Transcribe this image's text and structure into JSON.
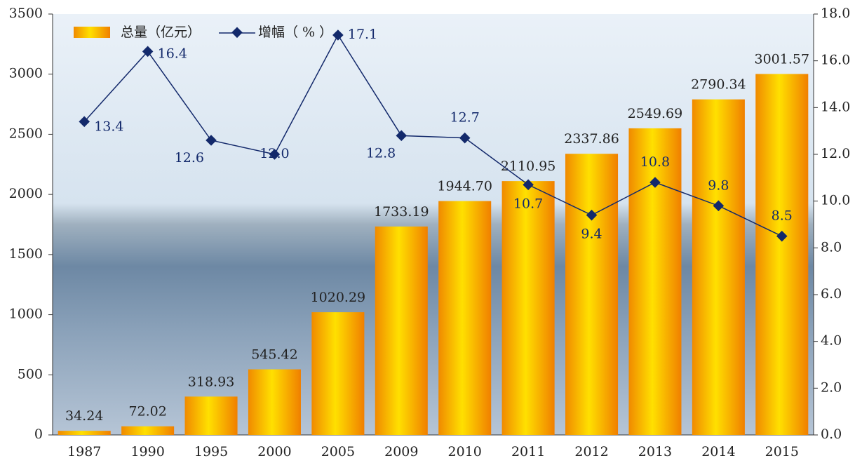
{
  "chart_data": {
    "type": "bar",
    "categories": [
      "1987",
      "1990",
      "1995",
      "2000",
      "2005",
      "2009",
      "2010",
      "2011",
      "2012",
      "2013",
      "2014",
      "2015"
    ],
    "series": [
      {
        "name": "总量（亿元）",
        "type": "bar",
        "color": "#f5a300",
        "values": [
          34.24,
          72.02,
          318.93,
          545.42,
          1020.29,
          1733.19,
          1944.7,
          2110.95,
          2337.86,
          2549.69,
          2790.34,
          3001.57
        ],
        "value_labels": [
          "34.24",
          "72.02",
          "318.93",
          "545.42",
          "1020.29",
          "1733.19",
          "1944.70",
          "2110.95",
          "2337.86",
          "2549.69",
          "2790.34",
          "3001.57"
        ]
      },
      {
        "name": "增幅（ % ）",
        "type": "line",
        "axis": "y2",
        "color": "#13296b",
        "values": [
          13.4,
          16.4,
          12.6,
          12.0,
          17.1,
          12.8,
          12.7,
          10.7,
          9.4,
          10.8,
          9.8,
          8.5
        ],
        "value_labels": [
          "13.4",
          "16.4",
          "12.6",
          "12.0",
          "17.1",
          "12.8",
          "12.7",
          "10.7",
          "9.4",
          "10.8",
          "9.8",
          "8.5"
        ]
      }
    ],
    "ylim": [
      0,
      3500
    ],
    "yticks": [
      0,
      500,
      1000,
      1500,
      2000,
      2500,
      3000,
      3500
    ],
    "y2lim": [
      0,
      18
    ],
    "y2ticks": [
      {
        "value": 0,
        "label": "0.0"
      },
      {
        "value": 2,
        "label": "2.0"
      },
      {
        "value": 4,
        "label": "4.0"
      },
      {
        "value": 6,
        "label": "6.0"
      },
      {
        "value": 8,
        "label": "8.0"
      },
      {
        "value": 10,
        "label": "10.0"
      },
      {
        "value": 12,
        "label": "12.0"
      },
      {
        "value": 14,
        "label": "14.0"
      },
      {
        "value": 16,
        "label": "16.0"
      },
      {
        "value": 18,
        "label": "18.0"
      }
    ],
    "legend": "top-left"
  }
}
